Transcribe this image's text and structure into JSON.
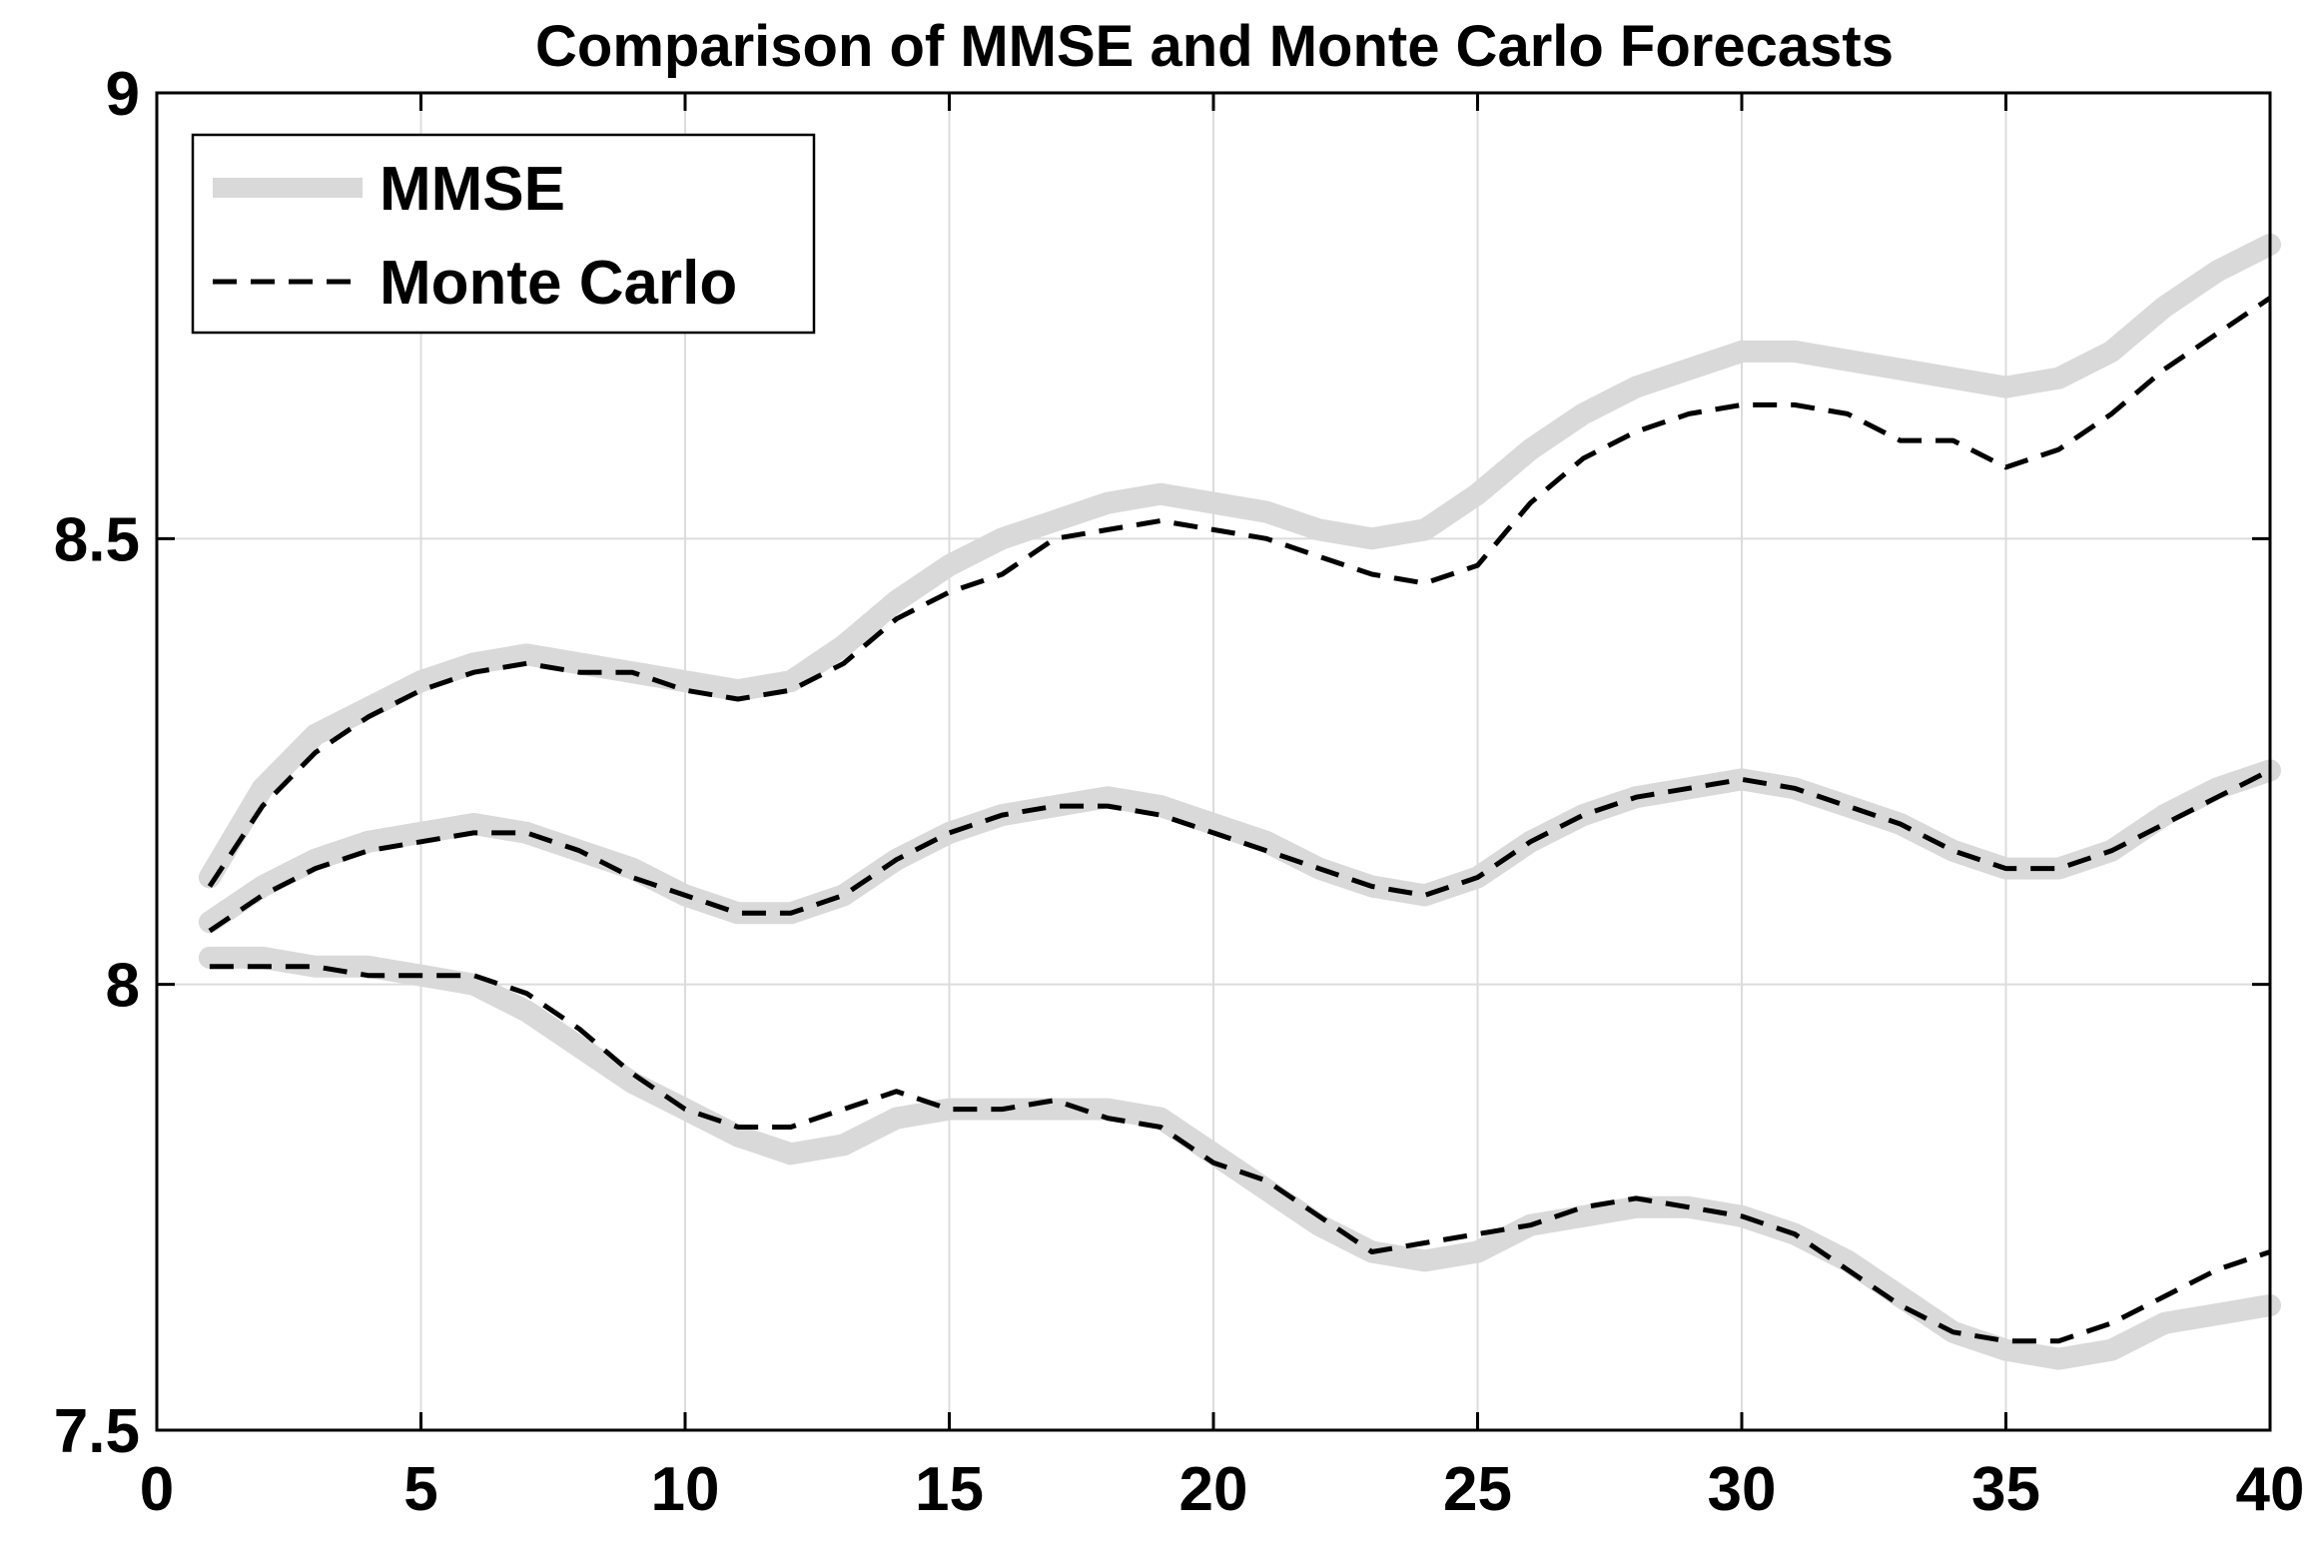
{
  "chart_data": {
    "type": "line",
    "title": "Comparison of MMSE and Monte Carlo Forecasts",
    "xlabel": "",
    "ylabel": "",
    "xlim": [
      0,
      40
    ],
    "ylim": [
      7.5,
      9
    ],
    "x_ticks": [
      "0",
      "5",
      "10",
      "15",
      "20",
      "25",
      "30",
      "35",
      "40"
    ],
    "y_ticks": [
      "7.5",
      "8",
      "8.5",
      "9"
    ],
    "grid": true,
    "legend_position": "top-left",
    "legend": [
      "MMSE",
      "Monte Carlo"
    ],
    "colors": {
      "mmse": "#d9d9d9",
      "monte_carlo": "#000000"
    },
    "x": [
      1,
      2,
      3,
      4,
      5,
      6,
      7,
      8,
      9,
      10,
      11,
      12,
      13,
      14,
      15,
      16,
      17,
      18,
      19,
      20,
      21,
      22,
      23,
      24,
      25,
      26,
      27,
      28,
      29,
      30,
      31,
      32,
      33,
      34,
      35,
      36,
      37,
      38,
      39,
      40
    ],
    "series": [
      {
        "name": "MMSE",
        "group": "upper",
        "style": "thick-gray",
        "values": [
          8.12,
          8.22,
          8.28,
          8.31,
          8.34,
          8.36,
          8.37,
          8.36,
          8.35,
          8.34,
          8.33,
          8.34,
          8.38,
          8.43,
          8.47,
          8.5,
          8.52,
          8.54,
          8.55,
          8.54,
          8.53,
          8.51,
          8.5,
          8.51,
          8.55,
          8.6,
          8.64,
          8.67,
          8.69,
          8.71,
          8.71,
          8.7,
          8.69,
          8.68,
          8.67,
          8.68,
          8.71,
          8.76,
          8.8,
          8.83
        ]
      },
      {
        "name": "MMSE",
        "group": "middle",
        "style": "thick-gray",
        "values": [
          8.07,
          8.11,
          8.14,
          8.16,
          8.17,
          8.18,
          8.17,
          8.15,
          8.13,
          8.1,
          8.08,
          8.08,
          8.1,
          8.14,
          8.17,
          8.19,
          8.2,
          8.21,
          8.2,
          8.18,
          8.16,
          8.13,
          8.11,
          8.1,
          8.12,
          8.16,
          8.19,
          8.21,
          8.22,
          8.23,
          8.22,
          8.2,
          8.18,
          8.15,
          8.13,
          8.13,
          8.15,
          8.19,
          8.22,
          8.24
        ]
      },
      {
        "name": "MMSE",
        "group": "lower",
        "style": "thick-gray",
        "values": [
          8.03,
          8.03,
          8.02,
          8.02,
          8.01,
          8.0,
          7.97,
          7.93,
          7.89,
          7.86,
          7.83,
          7.81,
          7.82,
          7.85,
          7.86,
          7.86,
          7.86,
          7.86,
          7.85,
          7.81,
          7.77,
          7.73,
          7.7,
          7.69,
          7.7,
          7.73,
          7.74,
          7.75,
          7.75,
          7.74,
          7.72,
          7.69,
          7.65,
          7.61,
          7.59,
          7.58,
          7.59,
          7.62,
          7.63,
          7.64
        ]
      },
      {
        "name": "Monte Carlo",
        "group": "upper",
        "style": "dashed-black",
        "values": [
          8.11,
          8.2,
          8.26,
          8.3,
          8.33,
          8.35,
          8.36,
          8.35,
          8.35,
          8.33,
          8.32,
          8.33,
          8.36,
          8.41,
          8.44,
          8.46,
          8.5,
          8.51,
          8.52,
          8.51,
          8.5,
          8.48,
          8.46,
          8.45,
          8.47,
          8.54,
          8.59,
          8.62,
          8.64,
          8.65,
          8.65,
          8.64,
          8.61,
          8.61,
          8.58,
          8.6,
          8.64,
          8.69,
          8.73,
          8.77
        ]
      },
      {
        "name": "Monte Carlo",
        "group": "middle",
        "style": "dashed-black",
        "values": [
          8.06,
          8.1,
          8.13,
          8.15,
          8.16,
          8.17,
          8.17,
          8.15,
          8.12,
          8.1,
          8.08,
          8.08,
          8.1,
          8.14,
          8.17,
          8.19,
          8.2,
          8.2,
          8.19,
          8.17,
          8.15,
          8.13,
          8.11,
          8.1,
          8.12,
          8.16,
          8.19,
          8.21,
          8.22,
          8.23,
          8.22,
          8.2,
          8.18,
          8.15,
          8.13,
          8.13,
          8.15,
          8.18,
          8.21,
          8.24
        ]
      },
      {
        "name": "Monte Carlo",
        "group": "lower",
        "style": "dashed-black",
        "values": [
          8.02,
          8.02,
          8.02,
          8.01,
          8.01,
          8.01,
          7.99,
          7.95,
          7.9,
          7.86,
          7.84,
          7.84,
          7.86,
          7.88,
          7.86,
          7.86,
          7.87,
          7.85,
          7.84,
          7.8,
          7.78,
          7.74,
          7.7,
          7.71,
          7.72,
          7.73,
          7.75,
          7.76,
          7.75,
          7.74,
          7.72,
          7.68,
          7.64,
          7.61,
          7.6,
          7.6,
          7.62,
          7.65,
          7.68,
          7.7
        ]
      }
    ]
  }
}
